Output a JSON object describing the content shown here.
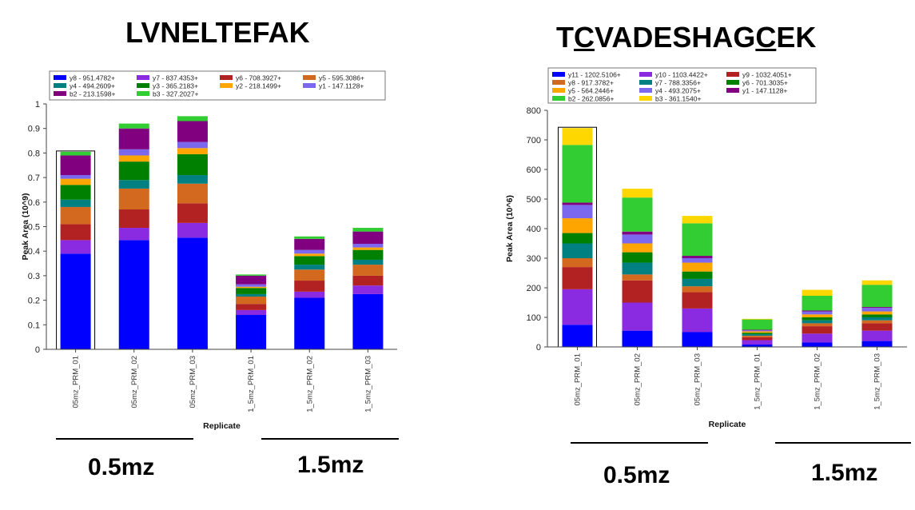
{
  "left": {
    "peptide_title": "LVNELTEFAK",
    "groups": [
      {
        "label": "0.5mz"
      },
      {
        "label": "1.5mz"
      }
    ]
  },
  "right": {
    "peptide_title_parts": [
      "T",
      "C",
      "VADESHAG",
      "C",
      "EK"
    ],
    "groups": [
      {
        "label": "0.5mz"
      },
      {
        "label": "1.5mz"
      }
    ]
  },
  "chart_data": [
    {
      "type": "bar",
      "stacked": true,
      "title": "LVNELTEFAK",
      "xlabel": "Replicate",
      "ylabel": "Peak Area (10^9)",
      "ylim": [
        0,
        1
      ],
      "yticks": [
        0,
        0.1,
        0.2,
        0.3,
        0.4,
        0.5,
        0.6,
        0.7,
        0.8,
        0.9,
        1
      ],
      "ytick_labels": [
        "0",
        "0.1",
        "0.2",
        "0.3",
        "0.4",
        "0.5",
        "0.6",
        "0.7",
        "0.8",
        "0.9",
        "1"
      ],
      "categories": [
        "05mz_PRM_01",
        "05mz_PRM_02",
        "05mz_PRM_03",
        "1_5mz_PRM_01",
        "1_5mz_PRM_02",
        "1_5mz_PRM_03"
      ],
      "selected_category": "05mz_PRM_01",
      "legend_position": "top",
      "legend_columns": 4,
      "series": [
        {
          "name": "y8 - 951.4782+",
          "color": "#0000ff",
          "values": [
            0.39,
            0.445,
            0.455,
            0.14,
            0.21,
            0.225
          ]
        },
        {
          "name": "y7 - 837.4353+",
          "color": "#8a2be2",
          "values": [
            0.055,
            0.05,
            0.06,
            0.02,
            0.025,
            0.035
          ]
        },
        {
          "name": "y6 - 708.3927+",
          "color": "#b22222",
          "values": [
            0.065,
            0.075,
            0.08,
            0.025,
            0.045,
            0.04
          ]
        },
        {
          "name": "y5 - 595.3086+",
          "color": "#d2691e",
          "values": [
            0.07,
            0.085,
            0.08,
            0.03,
            0.045,
            0.045
          ]
        },
        {
          "name": "y4 - 494.2609+",
          "color": "#008080",
          "values": [
            0.03,
            0.035,
            0.035,
            0.01,
            0.02,
            0.02
          ]
        },
        {
          "name": "y3 - 365.2183+",
          "color": "#008000",
          "values": [
            0.06,
            0.075,
            0.085,
            0.025,
            0.035,
            0.04
          ]
        },
        {
          "name": "y2 - 218.1499+",
          "color": "#ffa500",
          "values": [
            0.025,
            0.025,
            0.025,
            0.005,
            0.01,
            0.01
          ]
        },
        {
          "name": "y1 - 147.1128+",
          "color": "#7b68ee",
          "values": [
            0.015,
            0.025,
            0.025,
            0.01,
            0.015,
            0.015
          ]
        },
        {
          "name": "b2 - 213.1598+",
          "color": "#800080",
          "values": [
            0.08,
            0.085,
            0.085,
            0.035,
            0.045,
            0.05
          ]
        },
        {
          "name": "b3 - 327.2027+",
          "color": "#32cd32",
          "values": [
            0.015,
            0.02,
            0.02,
            0.005,
            0.01,
            0.015
          ]
        }
      ]
    },
    {
      "type": "bar",
      "stacked": true,
      "title": "TCVADESHAGCEK",
      "xlabel": "Replicate",
      "ylabel": "Peak Area (10^6)",
      "ylim": [
        0,
        800
      ],
      "yticks": [
        0,
        100,
        200,
        300,
        400,
        500,
        600,
        700,
        800
      ],
      "ytick_labels": [
        "0",
        "100",
        "200",
        "300",
        "400",
        "500",
        "600",
        "700",
        "800"
      ],
      "categories": [
        "05mz_PRM_01",
        "05mz_PRM_02",
        "05mz_PRM_03",
        "1_5mz_PRM_01",
        "1_5mz_PRM_02",
        "1_5mz_PRM_03"
      ],
      "selected_category": "05mz_PRM_01",
      "legend_position": "top",
      "legend_columns": 3,
      "series": [
        {
          "name": "y11 - 1202.5106+",
          "color": "#0000ff",
          "values": [
            75,
            55,
            50,
            8,
            15,
            20
          ]
        },
        {
          "name": "y10 - 1103.4422+",
          "color": "#8a2be2",
          "values": [
            120,
            95,
            80,
            15,
            30,
            35
          ]
        },
        {
          "name": "y9 - 1032.4051+",
          "color": "#b22222",
          "values": [
            75,
            75,
            55,
            10,
            25,
            25
          ]
        },
        {
          "name": "y8 - 917.3782+",
          "color": "#d2691e",
          "values": [
            30,
            20,
            20,
            5,
            10,
            10
          ]
        },
        {
          "name": "y7 - 788.3356+",
          "color": "#008080",
          "values": [
            50,
            40,
            25,
            5,
            10,
            10
          ]
        },
        {
          "name": "y6 - 701.3035+",
          "color": "#008000",
          "values": [
            35,
            35,
            25,
            5,
            10,
            10
          ]
        },
        {
          "name": "y5 - 564.2446+",
          "color": "#ffa500",
          "values": [
            50,
            30,
            30,
            5,
            10,
            10
          ]
        },
        {
          "name": "y4 - 493.2075+",
          "color": "#7b68ee",
          "values": [
            45,
            30,
            15,
            3,
            10,
            12
          ]
        },
        {
          "name": "y1 - 147.1128+",
          "color": "#800080",
          "values": [
            8,
            10,
            8,
            2,
            3,
            3
          ]
        },
        {
          "name": "b2 - 262.0856+",
          "color": "#32cd32",
          "values": [
            195,
            115,
            110,
            35,
            50,
            75
          ]
        },
        {
          "name": "b3 - 361.1540+",
          "color": "#ffd700",
          "values": [
            57,
            30,
            25,
            2,
            20,
            15
          ]
        }
      ]
    }
  ]
}
